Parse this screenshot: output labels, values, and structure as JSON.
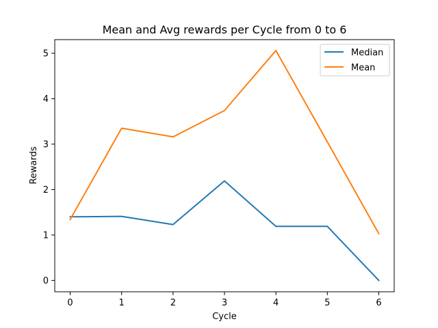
{
  "chart_data": {
    "type": "line",
    "title": "Mean and Avg rewards per Cycle from 0 to 6",
    "xlabel": "Cycle",
    "ylabel": "Rewards",
    "x": [
      0,
      1,
      2,
      3,
      4,
      5,
      6
    ],
    "xlim": [
      -0.3,
      6.3
    ],
    "ylim": [
      -0.25,
      5.3
    ],
    "xticks": [
      0,
      1,
      2,
      3,
      4,
      5,
      6
    ],
    "yticks": [
      0,
      1,
      2,
      3,
      4,
      5
    ],
    "grid": false,
    "legend_position": "top-right",
    "series": [
      {
        "name": "Median",
        "color": "#1f77b4",
        "values": [
          1.4,
          1.41,
          1.23,
          2.19,
          1.19,
          1.19,
          0.0
        ]
      },
      {
        "name": "Mean",
        "color": "#ff7f0e",
        "values": [
          1.34,
          3.35,
          3.16,
          3.74,
          5.06,
          3.05,
          1.03
        ]
      }
    ]
  }
}
